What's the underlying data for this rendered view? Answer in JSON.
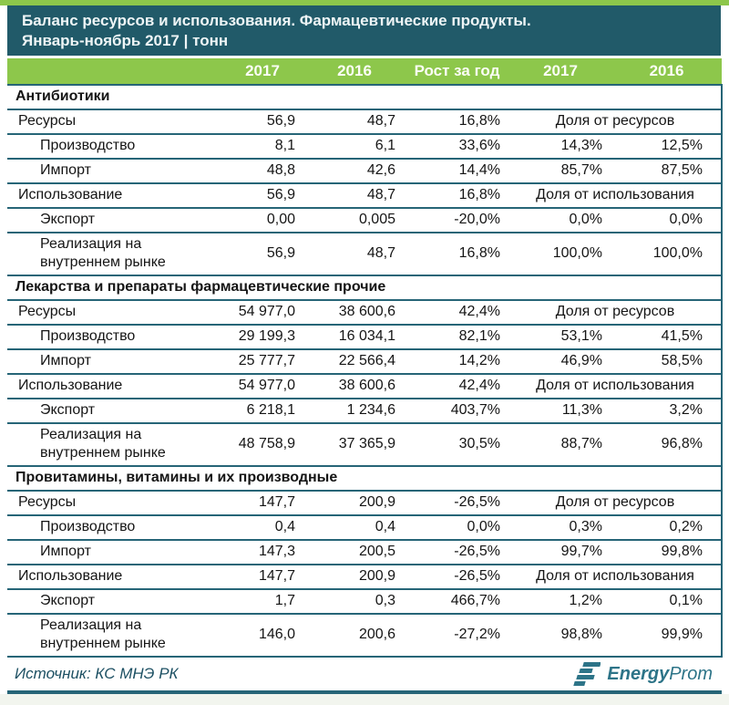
{
  "header": {
    "title_line1": "Баланс ресурсов и использования. Фармацевтические продукты.",
    "title_line2": "Январь-ноябрь 2017 | тонн"
  },
  "chart_data": {
    "type": "table",
    "title": "Баланс ресурсов и использования. Фармацевтические продукты. Январь-ноябрь 2017, тонн",
    "columns": [
      "2017",
      "2016",
      "Рост за год",
      "2017",
      "2016"
    ],
    "sections": [
      {
        "name": "Антибиотики",
        "rows": [
          {
            "label": "Ресурсы",
            "indent": false,
            "values": [
              "56,9",
              "48,7",
              "16,8%"
            ],
            "share_label": "Доля от ресурсов"
          },
          {
            "label": "Производство",
            "indent": true,
            "values": [
              "8,1",
              "6,1",
              "33,6%",
              "14,3%",
              "12,5%"
            ]
          },
          {
            "label": "Импорт",
            "indent": true,
            "values": [
              "48,8",
              "42,6",
              "14,4%",
              "85,7%",
              "87,5%"
            ]
          },
          {
            "label": "Использование",
            "indent": false,
            "values": [
              "56,9",
              "48,7",
              "16,8%"
            ],
            "share_label": "Доля от использования"
          },
          {
            "label": "Экспорт",
            "indent": true,
            "values": [
              "0,00",
              "0,005",
              "-20,0%",
              "0,0%",
              "0,0%"
            ]
          },
          {
            "label": "Реализация на внутреннем рынке",
            "indent": true,
            "values": [
              "56,9",
              "48,7",
              "16,8%",
              "100,0%",
              "100,0%"
            ]
          }
        ]
      },
      {
        "name": "Лекарства и препараты фармацевтические прочие",
        "rows": [
          {
            "label": "Ресурсы",
            "indent": false,
            "values": [
              "54 977,0",
              "38 600,6",
              "42,4%"
            ],
            "share_label": "Доля от ресурсов"
          },
          {
            "label": "Производство",
            "indent": true,
            "values": [
              "29 199,3",
              "16 034,1",
              "82,1%",
              "53,1%",
              "41,5%"
            ]
          },
          {
            "label": "Импорт",
            "indent": true,
            "values": [
              "25 777,7",
              "22 566,4",
              "14,2%",
              "46,9%",
              "58,5%"
            ]
          },
          {
            "label": "Использование",
            "indent": false,
            "values": [
              "54 977,0",
              "38 600,6",
              "42,4%"
            ],
            "share_label": "Доля от использования"
          },
          {
            "label": "Экспорт",
            "indent": true,
            "values": [
              "6 218,1",
              "1 234,6",
              "403,7%",
              "11,3%",
              "3,2%"
            ]
          },
          {
            "label": "Реализация на внутреннем рынке",
            "indent": true,
            "values": [
              "48 758,9",
              "37 365,9",
              "30,5%",
              "88,7%",
              "96,8%"
            ]
          }
        ]
      },
      {
        "name": "Провитамины, витамины и их производные",
        "rows": [
          {
            "label": "Ресурсы",
            "indent": false,
            "values": [
              "147,7",
              "200,9",
              "-26,5%"
            ],
            "share_label": "Доля от ресурсов"
          },
          {
            "label": "Производство",
            "indent": true,
            "values": [
              "0,4",
              "0,4",
              "0,0%",
              "0,3%",
              "0,2%"
            ]
          },
          {
            "label": "Импорт",
            "indent": true,
            "values": [
              "147,3",
              "200,5",
              "-26,5%",
              "99,7%",
              "99,8%"
            ]
          },
          {
            "label": "Использование",
            "indent": false,
            "values": [
              "147,7",
              "200,9",
              "-26,5%"
            ],
            "share_label": "Доля от использования"
          },
          {
            "label": "Экспорт",
            "indent": true,
            "values": [
              "1,7",
              "0,3",
              "466,7%",
              "1,2%",
              "0,1%"
            ]
          },
          {
            "label": "Реализация на внутреннем рынке",
            "indent": true,
            "values": [
              "146,0",
              "200,6",
              "-27,2%",
              "98,8%",
              "99,9%"
            ]
          }
        ]
      }
    ]
  },
  "footer": {
    "source": "Источник: КС МНЭ РК",
    "logo_text_bold": "Energy",
    "logo_text_light": "Prom"
  },
  "colors": {
    "accent_green": "#8dc74b",
    "header_teal": "#215a69",
    "border_teal": "#266577",
    "logo_teal": "#2d7488"
  }
}
